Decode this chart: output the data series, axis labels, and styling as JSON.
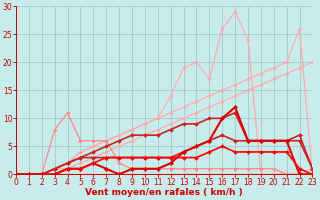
{
  "x": [
    0,
    1,
    2,
    3,
    4,
    5,
    6,
    7,
    8,
    9,
    10,
    11,
    12,
    13,
    14,
    15,
    16,
    17,
    18,
    19,
    20,
    21,
    22,
    23
  ],
  "series": [
    {
      "y": [
        0,
        0,
        0,
        0,
        0,
        0,
        0,
        0,
        0,
        0,
        0,
        0,
        0,
        0,
        0,
        0,
        0,
        0,
        0,
        0,
        0,
        0,
        0,
        1
      ],
      "color": "#ffbbbb",
      "lw": 0.8,
      "marker": "D",
      "ms": 1.5
    },
    {
      "y": [
        0,
        0,
        0,
        0,
        0,
        0,
        0,
        0,
        0,
        0,
        0,
        0,
        0,
        0,
        0,
        0,
        0,
        0,
        0,
        0,
        0,
        0,
        0,
        1
      ],
      "color": "#ffbbbb",
      "lw": 0.8,
      "marker": "D",
      "ms": 1.5
    },
    {
      "y": [
        0,
        0,
        0,
        1,
        1,
        2,
        3,
        4,
        5,
        6,
        7,
        8,
        9,
        10,
        11,
        12,
        13,
        14,
        15,
        16,
        17,
        18,
        19,
        20
      ],
      "color": "#ffaaaa",
      "lw": 0.9,
      "marker": "D",
      "ms": 1.8
    },
    {
      "y": [
        0,
        0,
        0,
        1,
        2,
        4,
        5,
        6,
        7,
        8,
        9,
        10,
        11,
        12,
        13,
        14,
        15,
        16,
        17,
        18,
        19,
        20,
        26,
        0
      ],
      "color": "#ffaaaa",
      "lw": 0.9,
      "marker": "D",
      "ms": 1.8
    },
    {
      "y": [
        0,
        0,
        0,
        1,
        2,
        4,
        5,
        6,
        7,
        8,
        9,
        10,
        14,
        19,
        20,
        17,
        26,
        29,
        24,
        0,
        0,
        0,
        0,
        0
      ],
      "color": "#ffaaaa",
      "lw": 0.9,
      "marker": "D",
      "ms": 1.8
    },
    {
      "y": [
        0,
        0,
        0,
        8,
        11,
        6,
        6,
        6,
        2,
        1,
        1,
        1,
        1,
        1,
        1,
        1,
        1,
        1,
        1,
        1,
        1,
        0,
        0,
        0
      ],
      "color": "#ff8888",
      "lw": 0.9,
      "marker": "D",
      "ms": 1.8
    },
    {
      "y": [
        0,
        0,
        0,
        1,
        2,
        3,
        4,
        5,
        6,
        7,
        7,
        7,
        8,
        9,
        9,
        10,
        10,
        11,
        6,
        6,
        6,
        6,
        6,
        1
      ],
      "color": "#cc2222",
      "lw": 1.2,
      "marker": "D",
      "ms": 2.0
    },
    {
      "y": [
        0,
        0,
        0,
        1,
        2,
        3,
        3,
        3,
        3,
        3,
        3,
        3,
        3,
        4,
        5,
        6,
        7,
        6,
        6,
        6,
        6,
        6,
        7,
        1
      ],
      "color": "#cc2222",
      "lw": 1.2,
      "marker": "D",
      "ms": 2.0
    },
    {
      "y": [
        0,
        0,
        0,
        0,
        1,
        1,
        2,
        1,
        0,
        1,
        1,
        1,
        2,
        4,
        5,
        6,
        10,
        12,
        6,
        6,
        6,
        6,
        0,
        0
      ],
      "color": "#dd0000",
      "lw": 1.5,
      "marker": "D",
      "ms": 2.2
    },
    {
      "y": [
        0,
        0,
        0,
        0,
        1,
        1,
        2,
        3,
        3,
        3,
        3,
        3,
        3,
        3,
        3,
        4,
        5,
        4,
        4,
        4,
        4,
        4,
        1,
        0
      ],
      "color": "#ff0000",
      "lw": 1.2,
      "marker": "D",
      "ms": 2.0
    }
  ],
  "xlabel": "Vent moyen/en rafales ( km/h )",
  "xlim": [
    0,
    23
  ],
  "ylim": [
    0,
    30
  ],
  "yticks": [
    0,
    5,
    10,
    15,
    20,
    25,
    30
  ],
  "xticks": [
    0,
    1,
    2,
    3,
    4,
    5,
    6,
    7,
    8,
    9,
    10,
    11,
    12,
    13,
    14,
    15,
    16,
    17,
    18,
    19,
    20,
    21,
    22,
    23
  ],
  "bg_color": "#c8ecec",
  "grid_color": "#a0c8c8",
  "xlabel_fontsize": 6.5,
  "tick_fontsize": 5.5
}
